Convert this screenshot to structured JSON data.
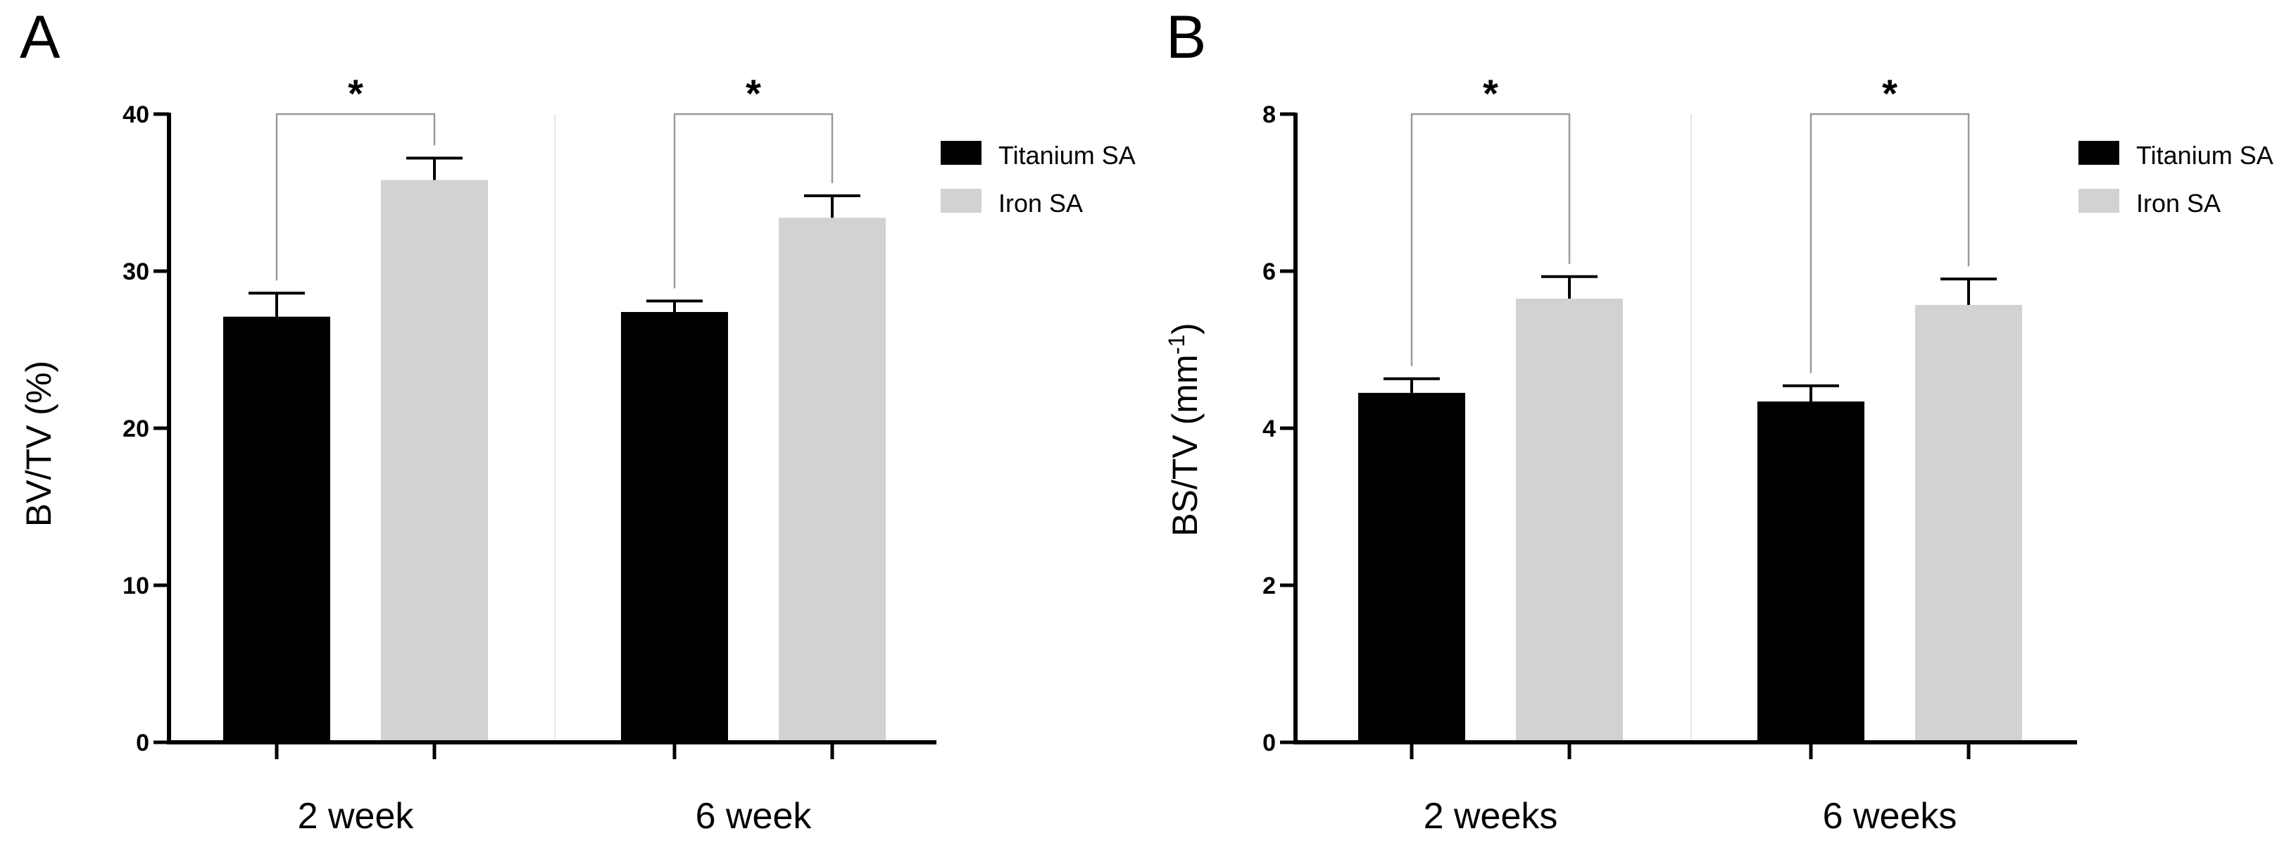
{
  "colors": {
    "titanium": "#000000",
    "iron": "#d2d2d2",
    "axis": "#000000",
    "bracket": "#9a9a9a",
    "divider": "#e6e6e6"
  },
  "chart_data": [
    {
      "panel_label": "A",
      "type": "bar",
      "categories": [
        "2 week",
        "6 week"
      ],
      "series": [
        {
          "name": "Titanium SA",
          "values": [
            27.1,
            27.4
          ],
          "errors": [
            1.5,
            0.7
          ]
        },
        {
          "name": "Iron SA",
          "values": [
            35.8,
            33.4
          ],
          "errors": [
            1.4,
            1.4
          ]
        }
      ],
      "ylabel": "BV/TV (%)",
      "ylabel_sup": "",
      "ylabel_tail": "",
      "ylim": [
        0,
        40
      ],
      "yticks": [
        "0",
        "10",
        "20",
        "30",
        "40"
      ],
      "significance": [
        "*",
        "*"
      ],
      "legend_position": "top-right"
    },
    {
      "panel_label": "B",
      "type": "bar",
      "categories": [
        "2 weeks",
        "6 weeks"
      ],
      "series": [
        {
          "name": "Titanium SA",
          "values": [
            4.45,
            4.34
          ],
          "errors": [
            0.18,
            0.2
          ]
        },
        {
          "name": "Iron SA",
          "values": [
            5.65,
            5.57
          ],
          "errors": [
            0.28,
            0.33
          ]
        }
      ],
      "ylabel": "BS/TV (mm",
      "ylabel_sup": "-1",
      "ylabel_tail": ")",
      "ylim": [
        0,
        8
      ],
      "yticks": [
        "0",
        "2",
        "4",
        "6",
        "8"
      ],
      "significance": [
        "*",
        "*"
      ],
      "legend_position": "top-right"
    }
  ]
}
